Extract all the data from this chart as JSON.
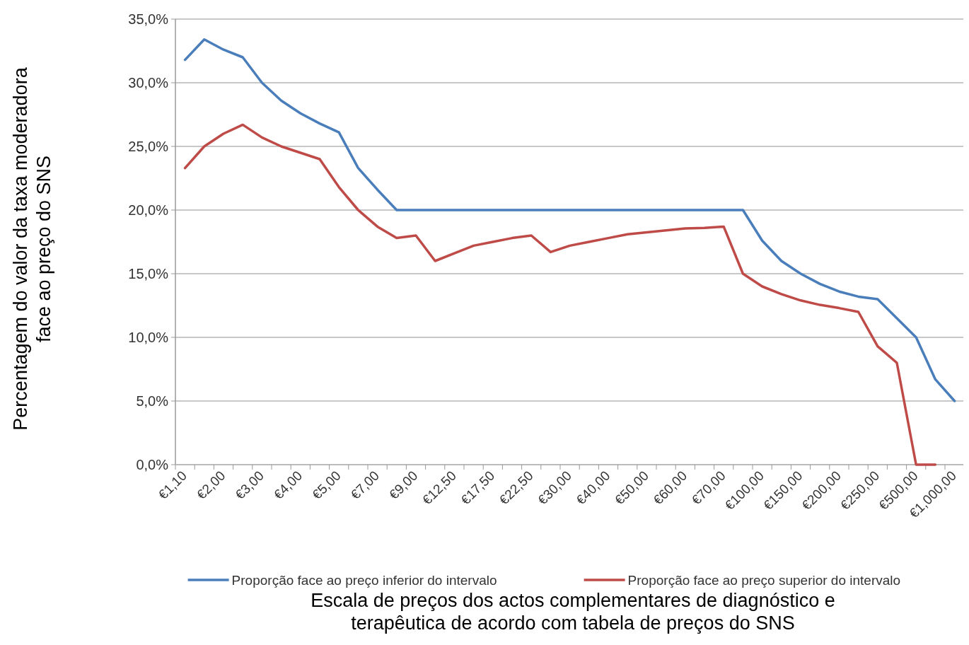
{
  "chart_data": {
    "type": "line",
    "xlabel": "Escala de preços dos actos complementares de diagnóstico e\nterapêutica de acordo com tabela de preços do SNS",
    "ylabel": "Percentagem do valor da taxa moderadora\nface ao preço do SNS",
    "categories": [
      "€1,10",
      null,
      "€2,00",
      null,
      "€3,00",
      null,
      "€4,00",
      null,
      "€5,00",
      null,
      "€7,00",
      null,
      "€9,00",
      null,
      "€12,50",
      null,
      "€17,50",
      null,
      "€22,50",
      null,
      "€30,00",
      null,
      "€40,00",
      null,
      "€50,00",
      null,
      "€60,00",
      null,
      "€70,00",
      null,
      "€100,00",
      null,
      "€150,00",
      null,
      "€200,00",
      null,
      "€250,00",
      null,
      "€500,00",
      null,
      "€1,000,00"
    ],
    "series": [
      {
        "name": "Proporção face ao preço inferior do intervalo",
        "color": "#4a7ebb",
        "values": [
          31.8,
          33.4,
          32.6,
          32.0,
          30.0,
          28.6,
          27.6,
          26.8,
          26.1,
          23.3,
          21.6,
          20.0,
          20,
          20,
          20,
          20,
          20,
          20,
          20,
          20,
          20,
          20,
          20,
          20,
          20,
          20,
          20,
          20,
          20,
          20,
          17.6,
          16.0,
          15.0,
          14.2,
          13.6,
          13.2,
          13.0,
          11.5,
          10.0,
          6.7,
          5.0
        ]
      },
      {
        "name": "Proporção face ao preço superior do intervalo",
        "color": "#be4b48",
        "values": [
          23.3,
          25.0,
          26.0,
          26.7,
          25.7,
          25.0,
          24.5,
          24.0,
          21.8,
          20.0,
          18.7,
          17.8,
          18.0,
          16.0,
          16.6,
          17.2,
          17.5,
          17.8,
          18.0,
          16.7,
          17.2,
          17.5,
          17.8,
          18.1,
          18.25,
          18.4,
          18.55,
          18.6,
          18.7,
          15.0,
          14.0,
          13.4,
          12.9,
          12.55,
          12.3,
          12.0,
          9.3,
          8.0,
          0.0,
          0.0,
          null
        ]
      }
    ],
    "ylim": [
      0,
      35
    ],
    "yticks": [
      {
        "value": 0,
        "label": "0,0%"
      },
      {
        "value": 5,
        "label": "5,0%"
      },
      {
        "value": 10,
        "label": "10,0%"
      },
      {
        "value": 15,
        "label": "15,0%"
      },
      {
        "value": 20,
        "label": "20,0%"
      },
      {
        "value": 25,
        "label": "25,0%"
      },
      {
        "value": 30,
        "label": "30,0%"
      },
      {
        "value": 35,
        "label": "35,0%"
      }
    ],
    "grid": "y",
    "legend": "bottom",
    "marker": "none",
    "line_style": "solid"
  }
}
